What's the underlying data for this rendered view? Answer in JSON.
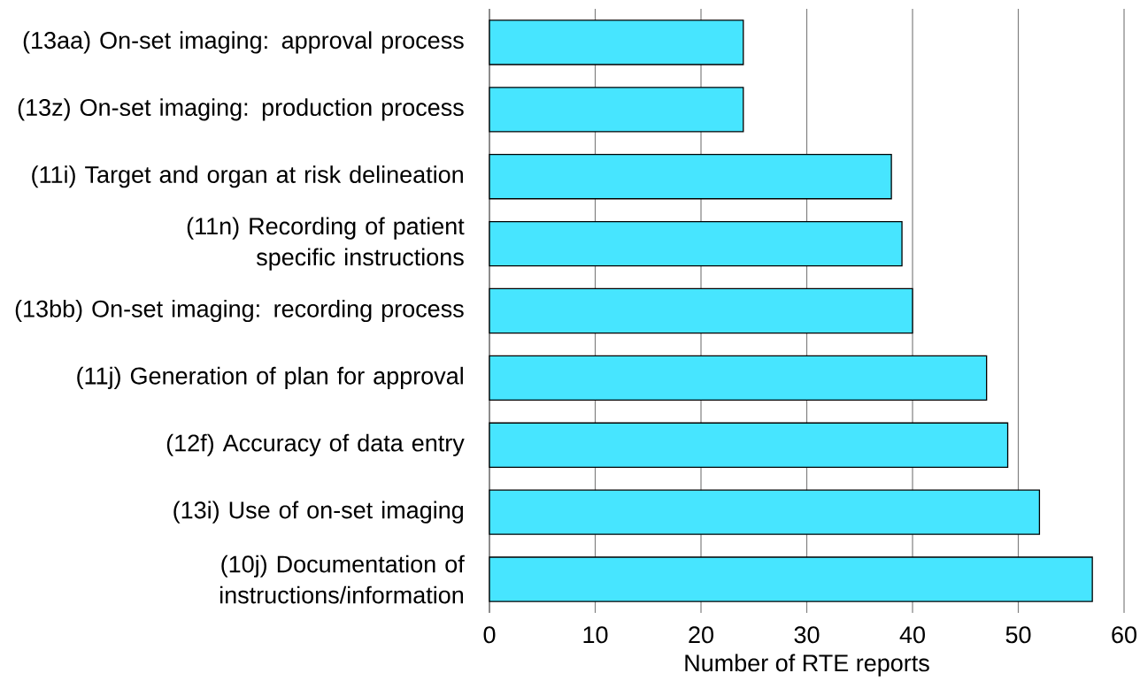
{
  "chart_data": {
    "type": "bar",
    "orientation": "horizontal",
    "categories": [
      "(13aa) On-set imaging: approval process",
      "(13z) On-set imaging: production process",
      "(11i) Target and organ at risk delineation",
      "(11n) Recording of patient specific instructions",
      "(13bb) On-set imaging: recording process",
      "(11j) Generation of plan for approval",
      "(12f) Accuracy of data entry",
      "(13i) Use of on-set imaging",
      "(10j) Documentation of instructions/information"
    ],
    "values": [
      24,
      24,
      38,
      39,
      40,
      47,
      49,
      52,
      57
    ],
    "color": "#47e5ff",
    "xlabel": "Number of RTE reports",
    "xlim": [
      0,
      60
    ],
    "xticks": [
      0,
      10,
      20,
      30,
      40,
      50,
      60
    ],
    "grid": "x"
  }
}
